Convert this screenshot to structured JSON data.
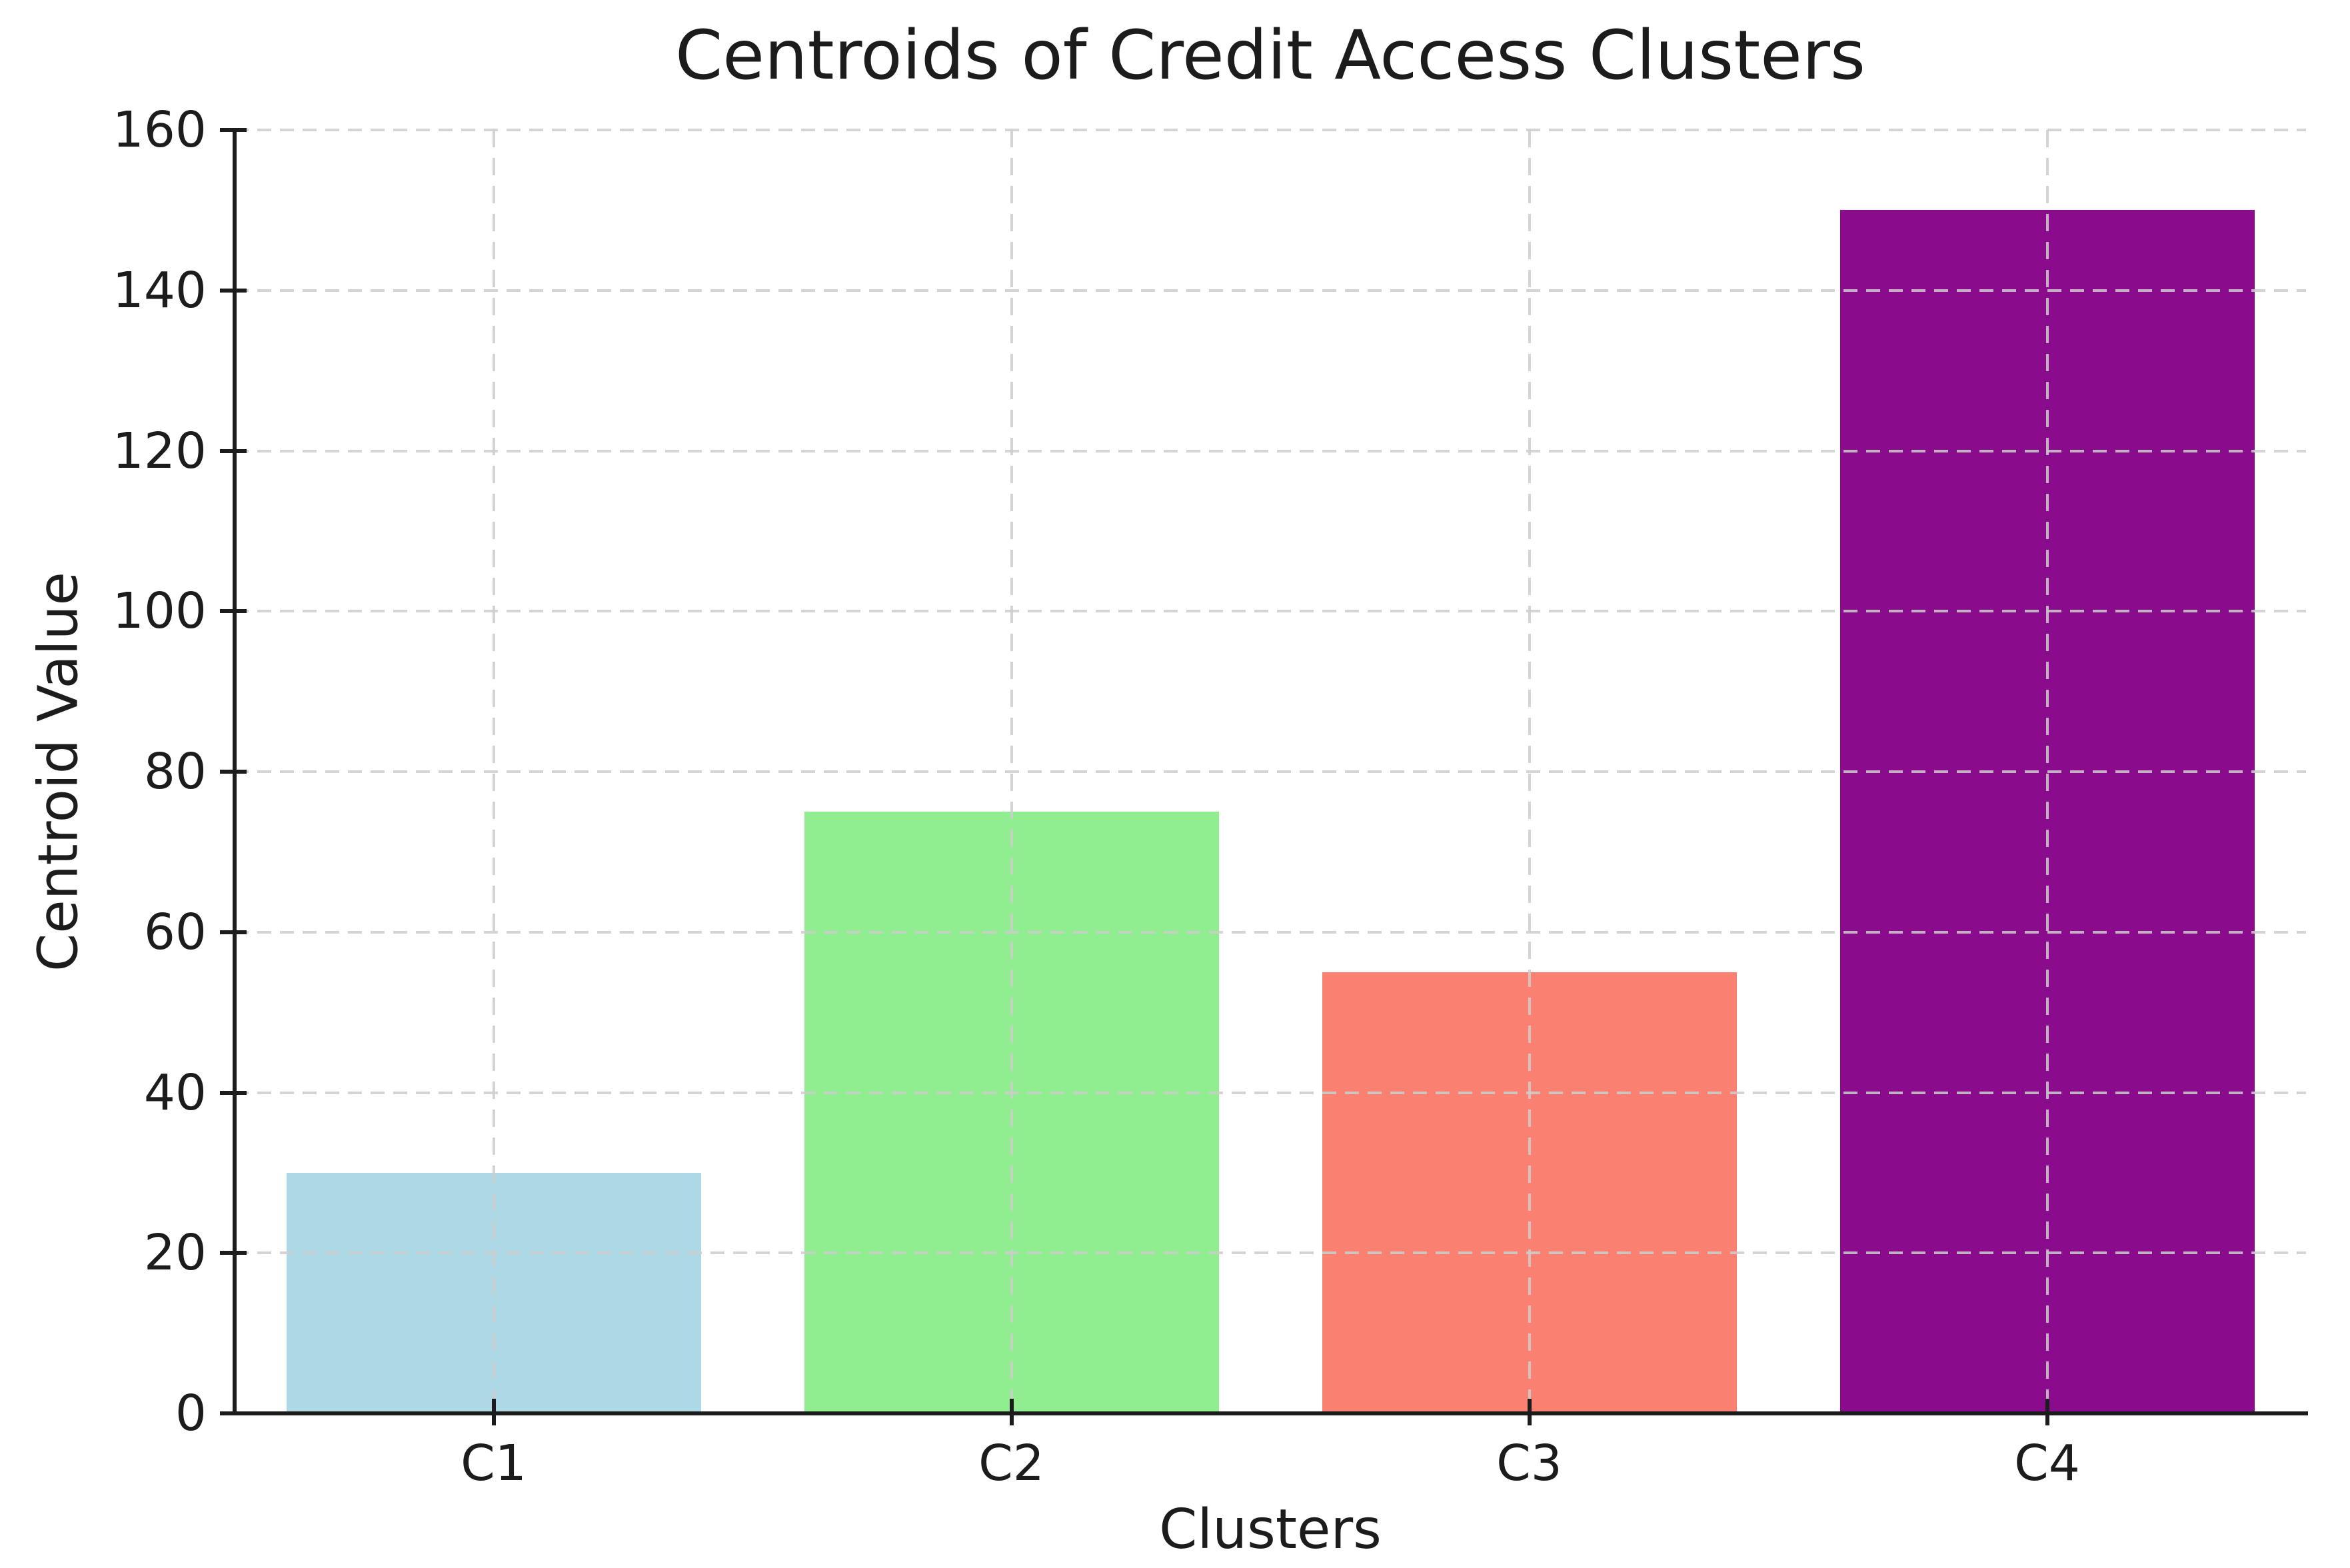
{
  "chart_data": {
    "type": "bar",
    "title": "Centroids of Credit Access Clusters",
    "xlabel": "Clusters",
    "ylabel": "Centroid Value",
    "categories": [
      "C1",
      "C2",
      "C3",
      "C4"
    ],
    "values": [
      30,
      75,
      55,
      150
    ],
    "bar_colors": [
      "#ADD8E6",
      "#90EE90",
      "#FA8072",
      "#8A0B8C"
    ],
    "ylim": [
      0,
      160
    ],
    "yticks": [
      0,
      20,
      40,
      60,
      80,
      100,
      120,
      140,
      160
    ],
    "bar_width_fraction": 0.8,
    "grid": "dashed",
    "grid_color": "#CDCDCD",
    "background_color": "#FFFFFF",
    "text_color": "#1C1C1C",
    "legend": "none"
  }
}
